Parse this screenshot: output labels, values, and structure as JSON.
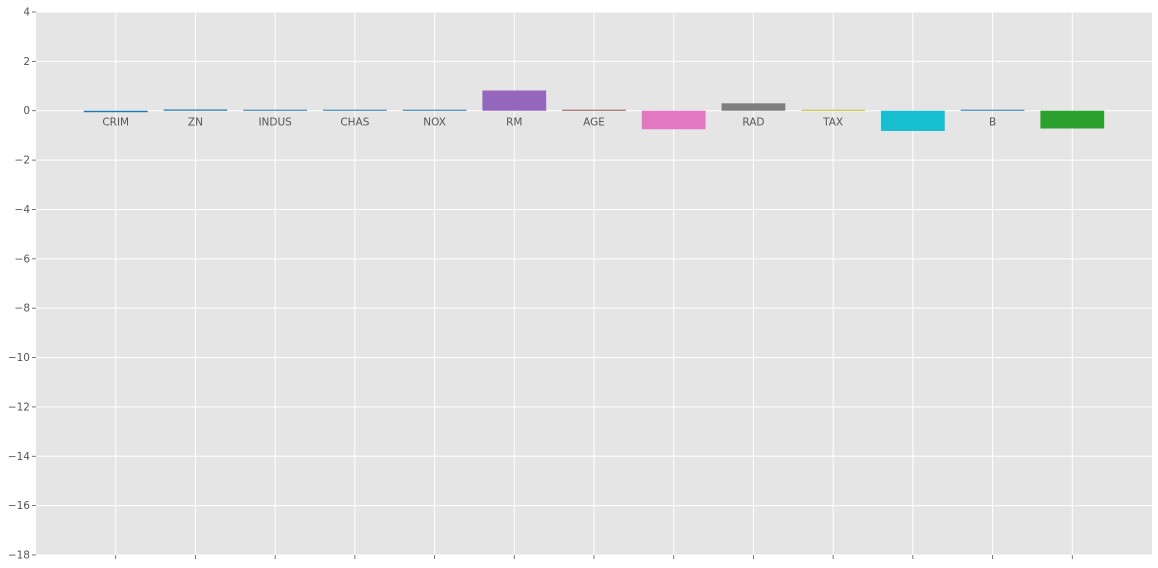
{
  "chart_data": {
    "type": "bar",
    "title": "",
    "xlabel": "",
    "ylabel": "",
    "ylim": [
      -18,
      4
    ],
    "yticks": [
      4,
      2,
      0,
      -2,
      -4,
      -6,
      -8,
      -10,
      -12,
      -14,
      -16,
      -18
    ],
    "grid": true,
    "categories": [
      "CRIM",
      "ZN",
      "INDUS",
      "CHAS",
      "NOX",
      "RM",
      "AGE",
      "",
      "RAD",
      "TAX",
      "",
      "B",
      ""
    ],
    "values": [
      -0.06,
      0.05,
      0.0,
      0.0,
      0.0,
      0.82,
      0.0,
      -0.75,
      0.3,
      0.0,
      -0.82,
      0.0,
      -0.72
    ],
    "colors": [
      "#1f77b4",
      "#1f77b4",
      "#1f77b4",
      "#1f77b4",
      "#1f77b4",
      "#9467bd",
      "#8c564b",
      "#e377c2",
      "#7f7f7f",
      "#bcbd22",
      "#17becf",
      "#1f77b4",
      "#2ca02c"
    ],
    "colors_note_source": "visible bar fill colors"
  }
}
